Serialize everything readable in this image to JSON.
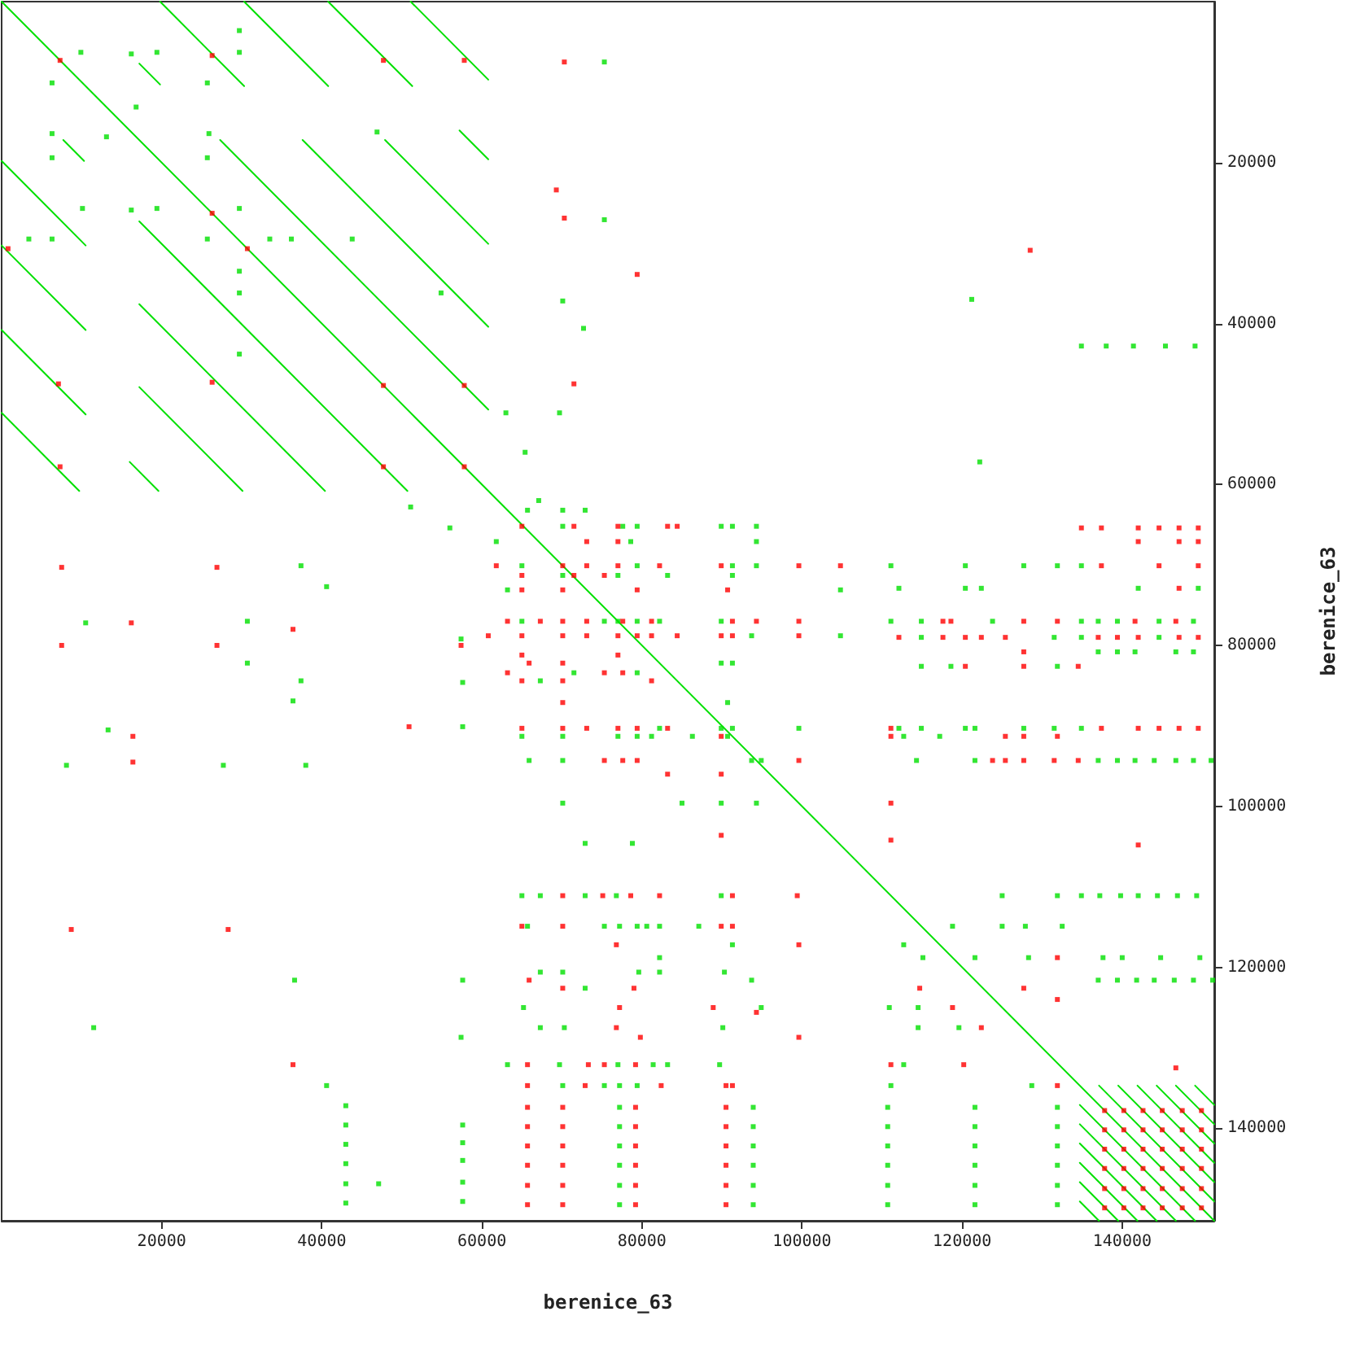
{
  "chart_data": {
    "type": "scatter",
    "xlabel": "berenice_63",
    "ylabel": "berenice_63",
    "xlim": [
      0,
      151500
    ],
    "ylim": [
      151500,
      0
    ],
    "xticks": [
      20000,
      40000,
      60000,
      80000,
      100000,
      120000,
      140000
    ],
    "yticks": [
      20000,
      40000,
      60000,
      80000,
      100000,
      120000,
      140000
    ],
    "series": [
      {
        "type": "line",
        "color": "#00e000",
        "x": [
          0,
          151500
        ],
        "values": [
          0,
          151500
        ]
      },
      {
        "type": "line",
        "color": "#00e000",
        "x": [
          19800,
          30300
        ],
        "values": [
          0,
          10500
        ]
      },
      {
        "type": "line",
        "color": "#00e000",
        "x": [
          30300,
          40800
        ],
        "values": [
          0,
          10500
        ]
      },
      {
        "type": "line",
        "color": "#00e000",
        "x": [
          40800,
          51300
        ],
        "values": [
          0,
          10500
        ]
      },
      {
        "type": "line",
        "color": "#00e000",
        "x": [
          51100,
          60800
        ],
        "values": [
          0,
          9700
        ]
      },
      {
        "type": "line",
        "color": "#00e000",
        "x": [
          17200,
          19800
        ],
        "values": [
          7700,
          10300
        ]
      },
      {
        "type": "line",
        "color": "#00e000",
        "x": [
          27300,
          60800
        ],
        "values": [
          17200,
          50700
        ]
      },
      {
        "type": "line",
        "color": "#00e000",
        "x": [
          37600,
          60800
        ],
        "values": [
          17200,
          40400
        ]
      },
      {
        "type": "line",
        "color": "#00e000",
        "x": [
          47900,
          60800
        ],
        "values": [
          17200,
          30100
        ]
      },
      {
        "type": "line",
        "color": "#00e000",
        "x": [
          57200,
          60800
        ],
        "values": [
          16000,
          19600
        ]
      },
      {
        "type": "line",
        "color": "#00e000",
        "x": [
          0,
          10500
        ],
        "values": [
          19800,
          30300
        ]
      },
      {
        "type": "line",
        "color": "#00e000",
        "x": [
          0,
          10500
        ],
        "values": [
          30300,
          40800
        ]
      },
      {
        "type": "line",
        "color": "#00e000",
        "x": [
          0,
          10500
        ],
        "values": [
          40800,
          51300
        ]
      },
      {
        "type": "line",
        "color": "#00e000",
        "x": [
          0,
          9700
        ],
        "values": [
          51100,
          60800
        ]
      },
      {
        "type": "line",
        "color": "#00e000",
        "x": [
          7700,
          10300
        ],
        "values": [
          17200,
          19800
        ]
      },
      {
        "type": "line",
        "color": "#00e000",
        "x": [
          17200,
          50700
        ],
        "values": [
          27300,
          60800
        ]
      },
      {
        "type": "line",
        "color": "#00e000",
        "x": [
          17200,
          40400
        ],
        "values": [
          37600,
          60800
        ]
      },
      {
        "type": "line",
        "color": "#00e000",
        "x": [
          17200,
          30100
        ],
        "values": [
          47900,
          60800
        ]
      },
      {
        "type": "line",
        "color": "#00e000",
        "x": [
          16000,
          19600
        ],
        "values": [
          57200,
          60800
        ]
      },
      {
        "type": "line",
        "color": "#00e000",
        "x": [
          137100,
          151500
        ],
        "values": [
          134700,
          149100
        ]
      },
      {
        "type": "line",
        "color": "#00e000",
        "x": [
          139500,
          151500
        ],
        "values": [
          134700,
          146700
        ]
      },
      {
        "type": "line",
        "color": "#00e000",
        "x": [
          141900,
          151500
        ],
        "values": [
          134700,
          144300
        ]
      },
      {
        "type": "line",
        "color": "#00e000",
        "x": [
          144300,
          151500
        ],
        "values": [
          134700,
          141900
        ]
      },
      {
        "type": "line",
        "color": "#00e000",
        "x": [
          146700,
          151500
        ],
        "values": [
          134700,
          139500
        ]
      },
      {
        "type": "line",
        "color": "#00e000",
        "x": [
          149100,
          151500
        ],
        "values": [
          134700,
          137100
        ]
      },
      {
        "type": "line",
        "color": "#00e000",
        "x": [
          134700,
          149100
        ],
        "values": [
          137100,
          151500
        ]
      },
      {
        "type": "line",
        "color": "#00e000",
        "x": [
          134700,
          146700
        ],
        "values": [
          139500,
          151500
        ]
      },
      {
        "type": "line",
        "color": "#00e000",
        "x": [
          134700,
          144300
        ],
        "values": [
          141900,
          151500
        ]
      },
      {
        "type": "line",
        "color": "#00e000",
        "x": [
          134700,
          141900
        ],
        "values": [
          144300,
          151500
        ]
      },
      {
        "type": "line",
        "color": "#00e000",
        "x": [
          134700,
          139500
        ],
        "values": [
          146700,
          151500
        ]
      },
      {
        "type": "line",
        "color": "#00e000",
        "x": [
          134700,
          137100
        ],
        "values": [
          149100,
          151500
        ]
      },
      {
        "color": "#00e000",
        "marker": "square",
        "x": [
          9900,
          16200,
          19400,
          6300,
          25700,
          29700,
          29700,
          16800,
          13100,
          6300,
          25900,
          46900,
          6300,
          25700,
          10100,
          16200,
          19400,
          29700,
          3400,
          6300,
          25700,
          33500,
          36200,
          43800,
          29700,
          29700,
          54900,
          29700,
          75300,
          75300,
          70100,
          72700,
          63000,
          69700,
          65400,
          67100,
          65700,
          70100,
          72900,
          51100,
          121200,
          134900,
          138000,
          141400,
          145400,
          149100,
          122200,
          111100,
          120400,
          127700,
          131900,
          134900,
          112100,
          120400,
          122400,
          142000,
          149500,
          111100,
          114900,
          123800,
          134900,
          137000,
          139400,
          144600,
          148900,
          114900,
          131500,
          134900,
          144600,
          137000,
          139400,
          141600,
          146700,
          148900,
          114900,
          118600,
          131900,
          112100,
          114900,
          120400,
          121600,
          127700,
          131500,
          134900,
          112700,
          117200,
          114300,
          121600,
          137000,
          139400,
          141600,
          144000,
          146700,
          148900,
          151100,
          70100,
          77600,
          79400,
          89900,
          91300,
          94300,
          61800,
          78600,
          94300,
          65000,
          79400,
          91300,
          94300,
          70100,
          77000,
          83200,
          91300,
          63200,
          104800,
          65000,
          75300,
          77000,
          79400,
          82200,
          89900,
          93700,
          104800,
          89900,
          91300,
          71500,
          79400,
          67300,
          90700,
          82200,
          89900,
          91300,
          99600,
          65000,
          70100,
          77000,
          79400,
          81200,
          86300,
          90700,
          65900,
          70100,
          93700,
          94900,
          70100,
          85000,
          89900,
          94300,
          72900,
          78800,
          65000,
          67300,
          72900,
          76800,
          89900,
          125000,
          131900,
          134900,
          137200,
          139800,
          142000,
          144400,
          146900,
          149300,
          65700,
          75300,
          77200,
          79400,
          80600,
          82200,
          87100,
          118800,
          125000,
          127900,
          132500,
          91300,
          112700,
          82200,
          115100,
          121600,
          128300,
          137600,
          140000,
          144800,
          149700,
          67300,
          70100,
          79600,
          82200,
          90300,
          93700,
          137000,
          139400,
          141800,
          144000,
          146500,
          148900,
          151300,
          72900,
          65200,
          94900,
          110900,
          114500,
          67300,
          70300,
          90100,
          114500,
          119600,
          63200,
          69700,
          77000,
          81400,
          83200,
          89700,
          112700,
          70100,
          75300,
          77200,
          79400,
          111100,
          128700,
          77200,
          93900,
          110700,
          121600,
          131900,
          77200,
          93900,
          110700,
          121600,
          131900,
          77200,
          93900,
          110700,
          121600,
          131900,
          77200,
          93900,
          110700,
          121600,
          131900,
          77200,
          93900,
          110700,
          121600,
          131900,
          77200,
          93900,
          110700,
          121600,
          131900,
          56000,
          37400,
          40600,
          10500,
          30700,
          57400,
          30700,
          37400,
          57600,
          36400,
          13300,
          57600,
          8100,
          27700,
          38000,
          36600,
          57600,
          11500,
          57400,
          40600,
          47100,
          43000,
          43000,
          43000,
          43000,
          43000,
          43000,
          57600,
          57600,
          57600,
          57600,
          57600
        ],
        "values": [
          6300,
          6500,
          6300,
          10100,
          10100,
          3600,
          6300,
          13100,
          16800,
          16400,
          16400,
          16200,
          19400,
          19400,
          25700,
          25900,
          25700,
          25700,
          29500,
          29500,
          29500,
          29500,
          29500,
          29500,
          33500,
          36200,
          36200,
          43800,
          7500,
          27100,
          37200,
          40600,
          51100,
          51100,
          56000,
          62000,
          63200,
          63200,
          63200,
          62800,
          37000,
          42800,
          42800,
          42800,
          42800,
          42800,
          57200,
          70100,
          70100,
          70100,
          70100,
          70100,
          72900,
          72900,
          72900,
          72900,
          72900,
          77000,
          77000,
          77000,
          77000,
          77000,
          77000,
          77000,
          77000,
          79000,
          79000,
          79000,
          79000,
          80800,
          80800,
          80800,
          80800,
          80800,
          82600,
          82600,
          82600,
          90300,
          90300,
          90300,
          90300,
          90300,
          90300,
          90300,
          91300,
          91300,
          94300,
          94300,
          94300,
          94300,
          94300,
          94300,
          94300,
          94300,
          94300,
          65200,
          65200,
          65200,
          65200,
          65200,
          65200,
          67100,
          67100,
          67100,
          70100,
          70100,
          70100,
          70100,
          71300,
          71300,
          71300,
          71300,
          73100,
          73100,
          77000,
          77000,
          77000,
          77000,
          77000,
          77000,
          78800,
          78800,
          82200,
          82200,
          83400,
          83400,
          84400,
          87100,
          90300,
          90300,
          90300,
          90300,
          91300,
          91300,
          91300,
          91300,
          91300,
          91300,
          91300,
          94300,
          94300,
          94300,
          94300,
          99600,
          99600,
          99600,
          99600,
          104600,
          104600,
          111100,
          111100,
          111100,
          111100,
          111100,
          111100,
          111100,
          111100,
          111100,
          111100,
          111100,
          111100,
          111100,
          111100,
          114900,
          114900,
          114900,
          114900,
          114900,
          114900,
          114900,
          114900,
          114900,
          114900,
          114900,
          117200,
          117200,
          118800,
          118800,
          118800,
          118800,
          118800,
          118800,
          118800,
          118800,
          120600,
          120600,
          120600,
          120600,
          120600,
          121600,
          121600,
          121600,
          121600,
          121600,
          121600,
          121600,
          121600,
          122600,
          125000,
          125000,
          125000,
          125000,
          127500,
          127500,
          127500,
          127500,
          127500,
          132100,
          132100,
          132100,
          132100,
          132100,
          132100,
          132100,
          134700,
          134700,
          134700,
          134700,
          134700,
          134700,
          137400,
          137400,
          137400,
          137400,
          137400,
          139800,
          139800,
          139800,
          139800,
          139800,
          142200,
          142200,
          142200,
          142200,
          142200,
          144600,
          144600,
          144600,
          144600,
          144600,
          147100,
          147100,
          147100,
          147100,
          147100,
          149500,
          149500,
          149500,
          149500,
          149500,
          65400,
          70100,
          72700,
          77200,
          77000,
          79200,
          82200,
          84400,
          84600,
          86900,
          90500,
          90100,
          94900,
          94900,
          94900,
          121600,
          121600,
          127500,
          128700,
          134700,
          146900,
          137200,
          139600,
          142000,
          144400,
          146900,
          149300,
          139600,
          141800,
          144000,
          146700,
          149100
        ]
      },
      {
        "color": "#ff0000",
        "marker": "square",
        "x": [
          7300,
          26300,
          47700,
          57800,
          26300,
          30700,
          800,
          7100,
          26300,
          47700,
          57800,
          7300,
          47700,
          57800,
          70300,
          69300,
          70300,
          71500,
          128500,
          79400,
          134900,
          137400,
          142000,
          144600,
          147100,
          149500,
          142000,
          147100,
          149500,
          137400,
          144600,
          149500,
          147100,
          117600,
          118600,
          127700,
          131900,
          141600,
          146700,
          112100,
          117600,
          120400,
          122400,
          125400,
          137000,
          139400,
          142000,
          147100,
          149500,
          127700,
          120400,
          127700,
          134500,
          111100,
          137400,
          142000,
          144600,
          147100,
          149500,
          111100,
          125400,
          127700,
          131900,
          123800,
          125400,
          127700,
          131500,
          134500,
          111100,
          65000,
          71500,
          77000,
          83200,
          84400,
          73100,
          77000,
          61800,
          70100,
          73100,
          77000,
          82200,
          89900,
          99600,
          104800,
          65000,
          71500,
          75300,
          65000,
          70100,
          79400,
          90700,
          63200,
          67300,
          70100,
          73100,
          77600,
          81200,
          91300,
          94300,
          99600,
          60800,
          65000,
          70100,
          73100,
          77000,
          79400,
          81200,
          84400,
          89900,
          91300,
          99600,
          65000,
          77000,
          65900,
          70100,
          63200,
          75300,
          77600,
          65000,
          70100,
          81200,
          70100,
          65000,
          70100,
          73100,
          77000,
          79400,
          83200,
          89900,
          75300,
          77600,
          79400,
          99600,
          83200,
          89900,
          89900,
          111100,
          142000,
          70100,
          75100,
          78600,
          82200,
          91300,
          99400,
          65000,
          70100,
          89900,
          91300,
          76800,
          99600,
          131900,
          65900,
          70100,
          79000,
          114700,
          127700,
          131900,
          77200,
          88900,
          118800,
          94300,
          76800,
          122400,
          79800,
          99600,
          65700,
          73300,
          75300,
          79200,
          111100,
          120200,
          146700,
          65700,
          72900,
          82400,
          90500,
          91300,
          131900,
          65700,
          70100,
          79200,
          90500,
          65700,
          70100,
          79200,
          90500,
          65700,
          70100,
          79200,
          90500,
          65700,
          70100,
          79200,
          90500,
          65700,
          70100,
          79200,
          90500,
          65700,
          70100,
          79200,
          90500,
          7500,
          26900,
          16200,
          36400,
          7500,
          26900,
          57400,
          16400,
          50900,
          16400,
          8700,
          28300,
          36400,
          137800,
          140200,
          142600,
          145000,
          147500,
          149900,
          137800,
          140200,
          142600,
          145000,
          147500,
          149900,
          137800,
          140200,
          142600,
          145000,
          147500,
          149900,
          137800,
          140200,
          142600,
          145000,
          147500,
          149900,
          137800,
          140200,
          142600,
          145000,
          147500,
          149900,
          137800,
          140200,
          142600,
          145000,
          147500,
          149900
        ],
        "values": [
          7300,
          6700,
          7300,
          7300,
          26300,
          30700,
          30700,
          47500,
          47300,
          47700,
          47700,
          57800,
          57800,
          57800,
          7500,
          23400,
          26900,
          47500,
          30900,
          33900,
          65400,
          65400,
          65400,
          65400,
          65400,
          65400,
          67100,
          67100,
          67100,
          70100,
          70100,
          70100,
          72900,
          77000,
          77000,
          77000,
          77000,
          77000,
          77000,
          79000,
          79000,
          79000,
          79000,
          79000,
          79000,
          79000,
          79000,
          79000,
          79000,
          80800,
          82600,
          82600,
          82600,
          90300,
          90300,
          90300,
          90300,
          90300,
          90300,
          91300,
          91300,
          91300,
          91300,
          94300,
          94300,
          94300,
          94300,
          94300,
          99600,
          65200,
          65200,
          65200,
          65200,
          65200,
          67100,
          67100,
          70100,
          70100,
          70100,
          70100,
          70100,
          70100,
          70100,
          70100,
          71300,
          71300,
          71300,
          73100,
          73100,
          73100,
          73100,
          77000,
          77000,
          77000,
          77000,
          77000,
          77000,
          77000,
          77000,
          77000,
          78800,
          78800,
          78800,
          78800,
          78800,
          78800,
          78800,
          78800,
          78800,
          78800,
          78800,
          81200,
          81200,
          82200,
          82200,
          83400,
          83400,
          83400,
          84400,
          84400,
          84400,
          87100,
          90300,
          90300,
          90300,
          90300,
          90300,
          90300,
          91300,
          94300,
          94300,
          94300,
          94300,
          96000,
          96000,
          103600,
          104200,
          104800,
          111100,
          111100,
          111100,
          111100,
          111100,
          111100,
          114900,
          114900,
          114900,
          114900,
          117200,
          117200,
          118800,
          121600,
          122600,
          122600,
          122600,
          122600,
          124000,
          125000,
          125000,
          125000,
          125600,
          127500,
          127500,
          128700,
          128700,
          132100,
          132100,
          132100,
          132100,
          132100,
          132100,
          132500,
          134700,
          134700,
          134700,
          134700,
          134700,
          134700,
          137400,
          137400,
          137400,
          137400,
          139800,
          139800,
          139800,
          139800,
          142200,
          142200,
          142200,
          142200,
          144600,
          144600,
          144600,
          144600,
          147100,
          147100,
          147100,
          147100,
          149500,
          149500,
          149500,
          149500,
          70300,
          70300,
          77200,
          78000,
          80000,
          80000,
          80000,
          91300,
          90100,
          94500,
          115300,
          115300,
          132100,
          137800,
          137800,
          137800,
          137800,
          137800,
          137800,
          140200,
          140200,
          140200,
          140200,
          140200,
          140200,
          142600,
          142600,
          142600,
          142600,
          142600,
          142600,
          145000,
          145000,
          145000,
          145000,
          145000,
          145000,
          147500,
          147500,
          147500,
          147500,
          147500,
          147500,
          149900,
          149900,
          149900,
          149900,
          149900,
          149900
        ]
      }
    ]
  }
}
